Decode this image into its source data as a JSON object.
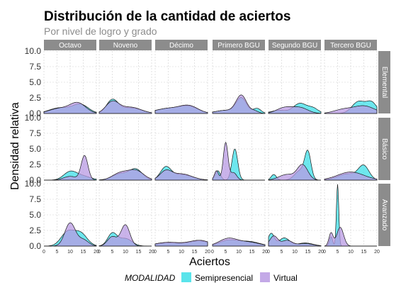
{
  "colors": {
    "Semipresencial": "#3ddfe8",
    "Virtual": "#b89ae3",
    "strip_bg": "#8c8c8c",
    "grid": "#cfcfcf"
  },
  "chart_data": {
    "type": "area",
    "title": "Distribución de la cantidad de aciertos",
    "subtitle": "Por nivel de logro y grado",
    "xlabel": "Aciertos",
    "ylabel": "Densidad relativa",
    "xlim": [
      0,
      20
    ],
    "ylim": [
      0,
      10
    ],
    "x_ticks": [
      0,
      5,
      10,
      15,
      20
    ],
    "y_ticks": [
      0.0,
      2.5,
      5.0,
      7.5,
      10.0
    ],
    "y_tick_labels": [
      "0.0",
      "2.5",
      "5.0",
      "7.5",
      "10.0"
    ],
    "columns": [
      "Octavo",
      "Noveno",
      "Décimo",
      "Primero BGU",
      "Segundo BGU",
      "Tercero BGU"
    ],
    "rows": [
      "Elemental",
      "Básico",
      "Avanzado"
    ],
    "legend": {
      "title": "MODALIDAD",
      "position": "bottom",
      "entries": [
        "Semipresencial",
        "Virtual"
      ]
    },
    "grid": true,
    "panels": [
      {
        "row": "Elemental",
        "col": "Octavo",
        "Semipresencial": [
          {
            "c": 6,
            "w": 4,
            "h": 0.9
          },
          {
            "c": 14,
            "w": 3,
            "h": 1.4
          }
        ],
        "Virtual": [
          {
            "c": 6,
            "w": 4,
            "h": 0.8
          },
          {
            "c": 13,
            "w": 3,
            "h": 1.6
          }
        ]
      },
      {
        "row": "Elemental",
        "col": "Noveno",
        "Semipresencial": [
          {
            "c": 5,
            "w": 2.2,
            "h": 2.1
          },
          {
            "c": 12,
            "w": 4,
            "h": 0.9
          }
        ],
        "Virtual": [
          {
            "c": 5,
            "w": 2.5,
            "h": 1.8
          },
          {
            "c": 12,
            "w": 4,
            "h": 1.0
          }
        ]
      },
      {
        "row": "Elemental",
        "col": "Décimo",
        "Semipresencial": [
          {
            "c": 5,
            "w": 5,
            "h": 0.8
          },
          {
            "c": 13,
            "w": 3.5,
            "h": 1.0
          }
        ],
        "Virtual": [
          {
            "c": 5,
            "w": 5,
            "h": 0.8
          },
          {
            "c": 13,
            "w": 3.5,
            "h": 1.1
          }
        ]
      },
      {
        "row": "Elemental",
        "col": "Primero BGU",
        "Semipresencial": [
          {
            "c": 5,
            "w": 4,
            "h": 0.5
          },
          {
            "c": 11,
            "w": 2,
            "h": 2.4
          },
          {
            "c": 17,
            "w": 1.5,
            "h": 0.8
          }
        ],
        "Virtual": [
          {
            "c": 5,
            "w": 4,
            "h": 0.5
          },
          {
            "c": 11,
            "w": 2,
            "h": 2.8
          },
          {
            "c": 16,
            "w": 1.5,
            "h": 0.4
          }
        ]
      },
      {
        "row": "Elemental",
        "col": "Segundo BGU",
        "Semipresencial": [
          {
            "c": 4,
            "w": 3,
            "h": 0.5
          },
          {
            "c": 12,
            "w": 2.5,
            "h": 1.6
          },
          {
            "c": 17,
            "w": 2,
            "h": 0.8
          }
        ],
        "Virtual": [
          {
            "c": 6,
            "w": 3,
            "h": 0.9
          },
          {
            "c": 12,
            "w": 3,
            "h": 0.9
          }
        ]
      },
      {
        "row": "Elemental",
        "col": "Tercero BGU",
        "Semipresencial": [
          {
            "c": 13,
            "w": 2.5,
            "h": 1.9
          },
          {
            "c": 18,
            "w": 2,
            "h": 1.7
          }
        ],
        "Virtual": [
          {
            "c": 7,
            "w": 3.5,
            "h": 0.6
          },
          {
            "c": 15,
            "w": 4,
            "h": 1.2
          }
        ]
      },
      {
        "row": "Básico",
        "col": "Octavo",
        "Semipresencial": [
          {
            "c": 10,
            "w": 2.5,
            "h": 1.3
          },
          {
            "c": 15,
            "w": 3,
            "h": 0.6
          }
        ],
        "Virtual": [
          {
            "c": 10,
            "w": 2.5,
            "h": 0.6
          },
          {
            "c": 15.5,
            "w": 1.3,
            "h": 3.9
          }
        ]
      },
      {
        "row": "Básico",
        "col": "Noveno",
        "Semipresencial": [
          {
            "c": 8,
            "w": 3,
            "h": 1.0
          },
          {
            "c": 14,
            "w": 2.5,
            "h": 1.7
          }
        ],
        "Virtual": [
          {
            "c": 8,
            "w": 3,
            "h": 1.1
          },
          {
            "c": 14,
            "w": 3,
            "h": 1.5
          }
        ]
      },
      {
        "row": "Básico",
        "col": "Décimo",
        "Semipresencial": [
          {
            "c": 4,
            "w": 2,
            "h": 1.9
          },
          {
            "c": 10,
            "w": 4,
            "h": 0.9
          }
        ],
        "Virtual": [
          {
            "c": 4,
            "w": 2.2,
            "h": 1.3
          },
          {
            "c": 10,
            "w": 4,
            "h": 1.0
          }
        ]
      },
      {
        "row": "Básico",
        "col": "Primero BGU",
        "Semipresencial": [
          {
            "c": 2,
            "w": 1,
            "h": 1.5
          },
          {
            "c": 8.5,
            "w": 1.1,
            "h": 5.0
          }
        ],
        "Virtual": [
          {
            "c": 1.5,
            "w": 0.8,
            "h": 1.5
          },
          {
            "c": 5,
            "w": 0.9,
            "h": 6.0
          },
          {
            "c": 8,
            "w": 1.2,
            "h": 1.2
          }
        ]
      },
      {
        "row": "Básico",
        "col": "Segundo BGU",
        "Semipresencial": [
          {
            "c": 2,
            "w": 1,
            "h": 0.9
          },
          {
            "c": 12,
            "w": 2,
            "h": 1.5
          },
          {
            "c": 15,
            "w": 1.2,
            "h": 4.3
          }
        ],
        "Virtual": [
          {
            "c": 7,
            "w": 3,
            "h": 0.9
          },
          {
            "c": 13,
            "w": 2,
            "h": 2.4
          }
        ]
      },
      {
        "row": "Básico",
        "col": "Tercero BGU",
        "Semipresencial": [
          {
            "c": 9,
            "w": 4,
            "h": 1.0
          },
          {
            "c": 15,
            "w": 2,
            "h": 2.1
          }
        ],
        "Virtual": [
          {
            "c": 10,
            "w": 5,
            "h": 1.3
          }
        ]
      },
      {
        "row": "Avanzado",
        "col": "Octavo",
        "Semipresencial": [
          {
            "c": 9,
            "w": 2.5,
            "h": 2.2
          },
          {
            "c": 14,
            "w": 2.5,
            "h": 2.0
          }
        ],
        "Virtual": [
          {
            "c": 10,
            "w": 2,
            "h": 3.7
          },
          {
            "c": 15,
            "w": 2,
            "h": 1.0
          }
        ]
      },
      {
        "row": "Avanzado",
        "col": "Noveno",
        "Semipresencial": [
          {
            "c": 5,
            "w": 1.8,
            "h": 2.0
          },
          {
            "c": 10,
            "w": 2.5,
            "h": 1.2
          }
        ],
        "Virtual": [
          {
            "c": 5,
            "w": 1.8,
            "h": 1.5
          },
          {
            "c": 10,
            "w": 1.7,
            "h": 3.4
          }
        ]
      },
      {
        "row": "Avanzado",
        "col": "Décimo",
        "Semipresencial": [
          {
            "c": 5,
            "w": 5,
            "h": 0.5
          },
          {
            "c": 17,
            "w": 4,
            "h": 0.8
          }
        ],
        "Virtual": [
          {
            "c": 5,
            "w": 5,
            "h": 0.6
          },
          {
            "c": 17,
            "w": 4,
            "h": 0.9
          }
        ]
      },
      {
        "row": "Avanzado",
        "col": "Primero BGU",
        "Semipresencial": [
          {
            "c": 6,
            "w": 3.5,
            "h": 0.9
          },
          {
            "c": 14,
            "w": 4,
            "h": 0.7
          }
        ],
        "Virtual": [
          {
            "c": 6,
            "w": 3.5,
            "h": 1.2
          },
          {
            "c": 14,
            "w": 4,
            "h": 0.6
          }
        ]
      },
      {
        "row": "Avanzado",
        "col": "Segundo BGU",
        "Semipresencial": [
          {
            "c": 1,
            "w": 1.2,
            "h": 2.0
          },
          {
            "c": 6,
            "w": 2,
            "h": 1.3
          },
          {
            "c": 14,
            "w": 3,
            "h": 0.5
          }
        ],
        "Virtual": [
          {
            "c": 2,
            "w": 1.5,
            "h": 1.6
          },
          {
            "c": 7,
            "w": 2,
            "h": 0.9
          },
          {
            "c": 14,
            "w": 3,
            "h": 0.4
          }
        ]
      },
      {
        "row": "Avanzado",
        "col": "Tercero BGU",
        "Semipresencial": [
          {
            "c": 2.5,
            "w": 0.6,
            "h": 1.5
          },
          {
            "c": 5,
            "w": 0.45,
            "h": 9.9
          }
        ],
        "Virtual": [
          {
            "c": 2.5,
            "w": 0.8,
            "h": 2.1
          },
          {
            "c": 6,
            "w": 1.3,
            "h": 3.0
          }
        ]
      }
    ]
  }
}
